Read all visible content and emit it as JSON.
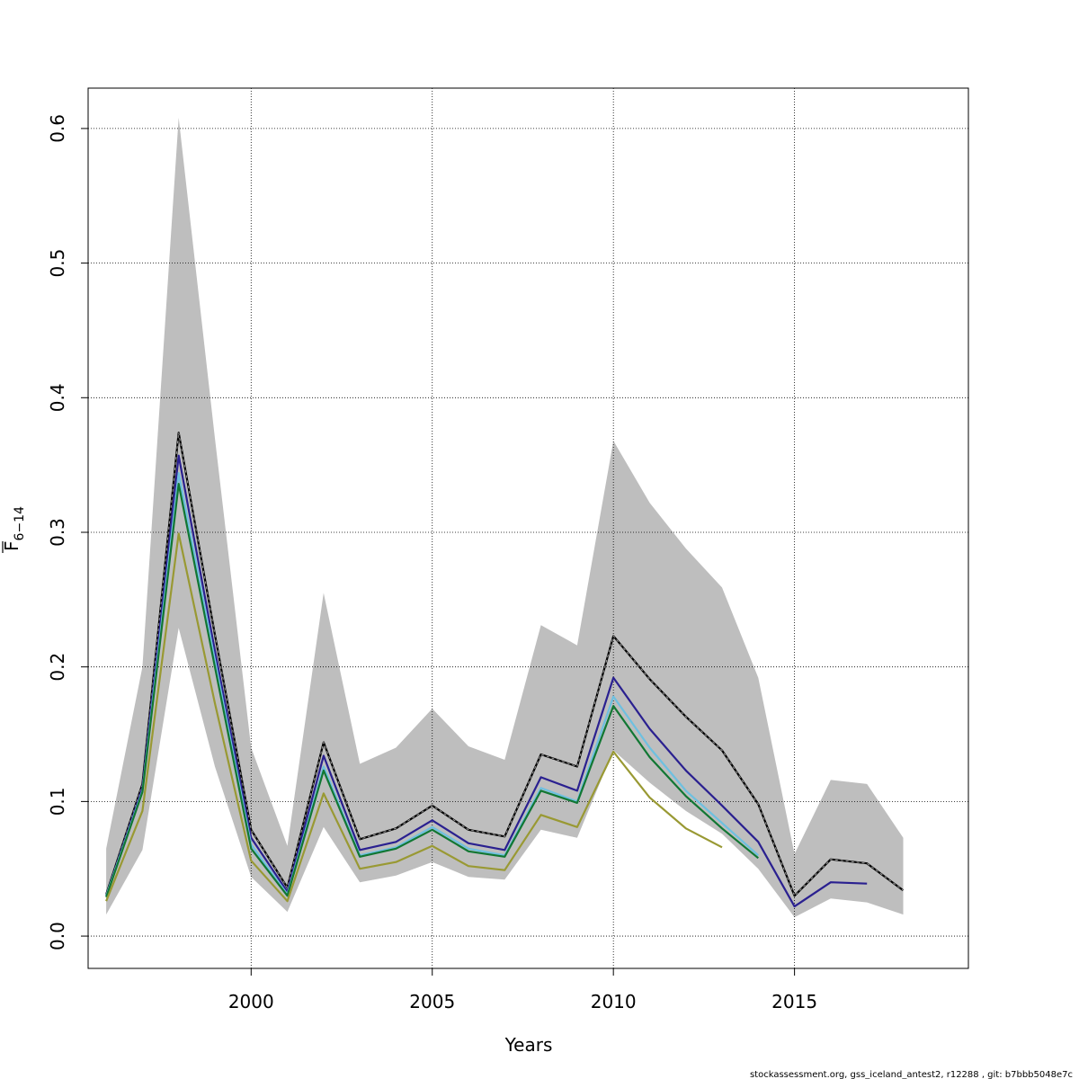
{
  "chart_data": {
    "type": "line",
    "xlabel": "Years",
    "ylabel_main": "F",
    "ylabel_sub": "6−14",
    "xlim": [
      1995.5,
      2019.8
    ],
    "ylim": [
      -0.024,
      0.63
    ],
    "x_ticks": [
      {
        "value": 2000,
        "label": "2000"
      },
      {
        "value": 2005,
        "label": "2005"
      },
      {
        "value": 2010,
        "label": "2010"
      },
      {
        "value": 2015,
        "label": "2015"
      }
    ],
    "y_ticks": [
      {
        "value": 0.0,
        "label": "0.0"
      },
      {
        "value": 0.1,
        "label": "0.1"
      },
      {
        "value": 0.2,
        "label": "0.2"
      },
      {
        "value": 0.3,
        "label": "0.3"
      },
      {
        "value": 0.4,
        "label": "0.4"
      },
      {
        "value": 0.5,
        "label": "0.5"
      },
      {
        "value": 0.6,
        "label": "0.6"
      }
    ],
    "grid": true,
    "band": {
      "color": "#bebebe",
      "x": [
        1996,
        1997,
        1998,
        1999,
        2000,
        2001,
        2002,
        2003,
        2004,
        2005,
        2006,
        2007,
        2008,
        2009,
        2010,
        2011,
        2012,
        2013,
        2014,
        2015,
        2016,
        2017,
        2018
      ],
      "upper": [
        0.065,
        0.2,
        0.608,
        0.37,
        0.14,
        0.067,
        0.255,
        0.128,
        0.14,
        0.169,
        0.141,
        0.131,
        0.231,
        0.216,
        0.368,
        0.322,
        0.288,
        0.259,
        0.192,
        0.061,
        0.116,
        0.113,
        0.073
      ],
      "lower": [
        0.016,
        0.064,
        0.229,
        0.126,
        0.044,
        0.018,
        0.081,
        0.04,
        0.045,
        0.055,
        0.044,
        0.042,
        0.079,
        0.073,
        0.138,
        0.114,
        0.093,
        0.076,
        0.05,
        0.014,
        0.028,
        0.025,
        0.016
      ]
    },
    "series": [
      {
        "color": "#000000",
        "dashed_overlay": true,
        "x": [
          1996,
          1997,
          1998,
          1999,
          2000,
          2001,
          2002,
          2003,
          2004,
          2005,
          2006,
          2007,
          2008,
          2009,
          2010,
          2011,
          2012,
          2013,
          2014,
          2015,
          2016,
          2017,
          2018
        ],
        "values": [
          0.031,
          0.113,
          0.374,
          0.224,
          0.079,
          0.036,
          0.144,
          0.072,
          0.08,
          0.097,
          0.079,
          0.074,
          0.135,
          0.126,
          0.223,
          0.191,
          0.163,
          0.138,
          0.098,
          0.03,
          0.057,
          0.054,
          0.034
        ]
      },
      {
        "color": "#2a2090",
        "x": [
          1996,
          1997,
          1998,
          1999,
          2000,
          2001,
          2002,
          2003,
          2004,
          2005,
          2006,
          2007,
          2008,
          2009,
          2010,
          2011,
          2012,
          2013,
          2014,
          2015,
          2016,
          2017
        ],
        "values": [
          0.03,
          0.11,
          0.357,
          0.212,
          0.073,
          0.033,
          0.134,
          0.064,
          0.07,
          0.086,
          0.069,
          0.064,
          0.118,
          0.108,
          0.192,
          0.154,
          0.123,
          0.097,
          0.07,
          0.022,
          0.04,
          0.039
        ]
      },
      {
        "color": "#6ec0e0",
        "x": [
          1996,
          1997,
          1998,
          1999,
          2000,
          2001,
          2002,
          2003,
          2004,
          2005,
          2006,
          2007,
          2008,
          2009,
          2010,
          2011,
          2012,
          2013,
          2014
        ],
        "values": [
          0.03,
          0.108,
          0.344,
          0.205,
          0.068,
          0.031,
          0.126,
          0.06,
          0.066,
          0.081,
          0.065,
          0.06,
          0.11,
          0.1,
          0.178,
          0.14,
          0.108,
          0.084,
          0.06
        ]
      },
      {
        "color": "#117733",
        "x": [
          1996,
          1997,
          1998,
          1999,
          2000,
          2001,
          2002,
          2003,
          2004,
          2005,
          2006,
          2007,
          2008,
          2009,
          2010,
          2011,
          2012,
          2013,
          2014
        ],
        "values": [
          0.029,
          0.107,
          0.336,
          0.2,
          0.065,
          0.03,
          0.123,
          0.059,
          0.065,
          0.079,
          0.063,
          0.059,
          0.108,
          0.099,
          0.171,
          0.133,
          0.104,
          0.08,
          0.058
        ]
      },
      {
        "color": "#999933",
        "x": [
          1996,
          1997,
          1998,
          1999,
          2000,
          2001,
          2002,
          2003,
          2004,
          2005,
          2006,
          2007,
          2008,
          2009,
          2010,
          2011,
          2012,
          2013
        ],
        "values": [
          0.026,
          0.093,
          0.299,
          0.173,
          0.056,
          0.026,
          0.106,
          0.05,
          0.055,
          0.067,
          0.052,
          0.049,
          0.09,
          0.081,
          0.137,
          0.103,
          0.08,
          0.066
        ]
      }
    ]
  },
  "footer": "stockassessment.org, gss_iceland_antest2, r12288 , git: b7bbb5048e7c"
}
